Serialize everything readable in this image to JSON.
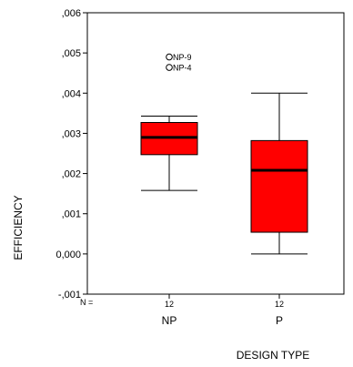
{
  "chart_data": {
    "type": "boxplot",
    "xlabel": "DESIGN TYPE",
    "ylabel": "EFFICIENCY",
    "ylim": [
      -0.001,
      0.006
    ],
    "y_ticks": [
      -0.001,
      0.0,
      0.001,
      0.002,
      0.003,
      0.004,
      0.005,
      0.006
    ],
    "y_tick_labels": [
      "-,001",
      "0,000",
      ",001",
      ",002",
      ",003",
      ",004",
      ",005",
      ",006"
    ],
    "n_label": "N =",
    "box_color": "#ff0000",
    "categories": [
      "NP",
      "P"
    ],
    "n": [
      "12",
      "12"
    ],
    "boxes": [
      {
        "category": "NP",
        "min": 0.00158,
        "q1": 0.00247,
        "median": 0.0029,
        "q3": 0.00327,
        "max": 0.00343
      },
      {
        "category": "P",
        "min": 0.0,
        "q1": 0.00054,
        "median": 0.00208,
        "q3": 0.00282,
        "max": 0.004
      }
    ],
    "outliers": [
      {
        "category": "NP",
        "label": "NP-9",
        "value": 0.0049
      },
      {
        "category": "NP",
        "label": "NP-4",
        "value": 0.00464
      }
    ]
  }
}
